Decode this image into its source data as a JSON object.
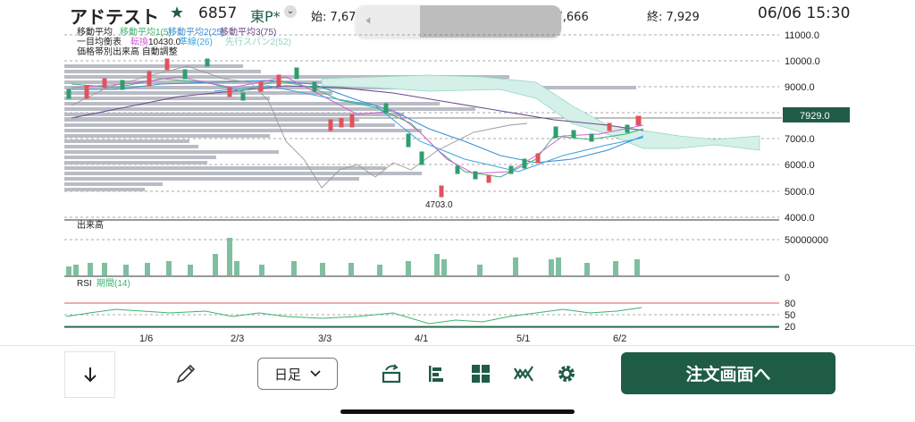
{
  "header": {
    "name": "アドテスト",
    "code": "6857",
    "market": "東P*",
    "open_label": "始: 7,67",
    "low_label": "安: 7,666",
    "close_label": "終: 7,929",
    "datetime": "06/06 15:30"
  },
  "legend": {
    "ma_title": "移動平均",
    "ma1": "移動平均1(5)",
    "ma2": "移動平均2(25)",
    "ma3": "移動平均3(75)",
    "ichimoku_title": "一目均衡表",
    "tenkan": "転換",
    "kijun": "準線(26)",
    "senko2": "先行スパン2(52)",
    "vol_profile": "価格帯別出来高 自動調整",
    "high_marker": "10430.0",
    "low_marker": "4703.0",
    "current_price": "7929.0"
  },
  "axis": {
    "price_ticks": [
      "11000.0",
      "10000.0",
      "9000.0",
      "8000.0",
      "7000.0",
      "6000.0",
      "5000.0",
      "4000.0"
    ],
    "volume_label": "出来高",
    "volume_ticks": [
      "50000000",
      "0"
    ],
    "rsi_label": "RSI",
    "rsi_period": "期間(14)",
    "rsi_ticks": [
      "80",
      "50",
      "20"
    ],
    "date_ticks": [
      "1/6",
      "2/3",
      "3/3",
      "4/1",
      "5/1",
      "6/2"
    ]
  },
  "colors": {
    "up": "#2e9e6e",
    "down": "#e2525c",
    "brand": "#1f5c45",
    "ma1": "#3cb371",
    "ma2": "#3a8fd6",
    "ma3": "#6b4a8c",
    "tenkan": "#d35fd6",
    "kijun": "#3da4e0",
    "cloud": "#bfe8df"
  },
  "toolbar": {
    "period_select": "日足",
    "order_button": "注文画面へ"
  },
  "icons": [
    "arrow-down-icon",
    "pencil-icon",
    "chevron-down-icon",
    "chart-type-icon",
    "indicator-bars-icon",
    "grid-icon",
    "compare-icon",
    "gear-icon"
  ]
}
